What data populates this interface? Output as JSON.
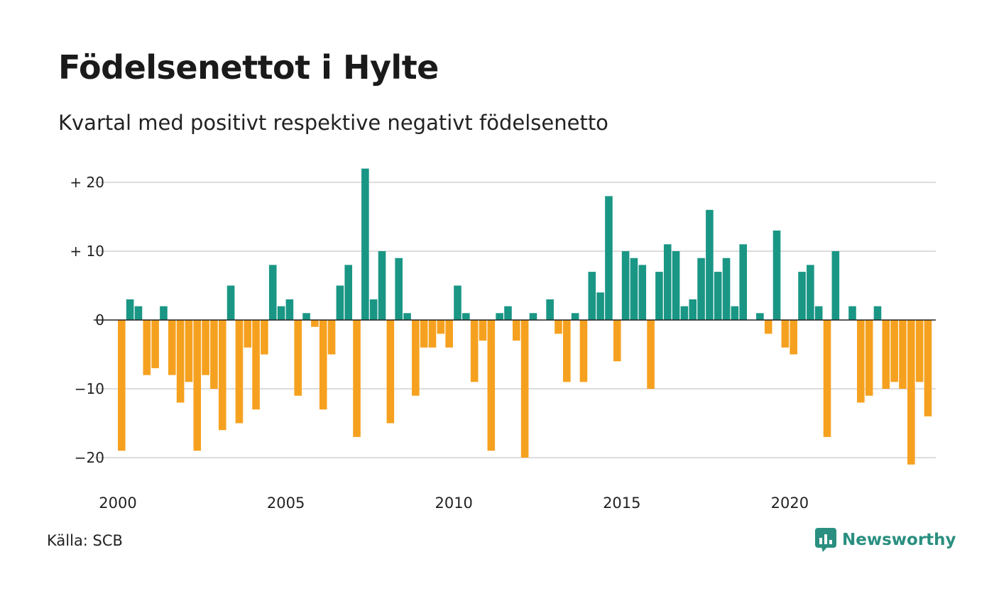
{
  "title": "Födelsenettot i Hylte",
  "subtitle": "Kvartal med positivt respektive negativt födelsenetto",
  "source": "Källa: SCB",
  "brand": "Newsworthy",
  "colors": {
    "positive": "#1a9685",
    "negative": "#f5a11f",
    "grid": "#dddddd",
    "zero": "#222222",
    "brand": "#2a8f80"
  },
  "chart_data": {
    "type": "bar",
    "x_start": "2000 Q1",
    "ylim": [
      -24,
      22
    ],
    "yticks": [
      {
        "value": 20,
        "label": "+ 20"
      },
      {
        "value": 10,
        "label": "+ 10"
      },
      {
        "value": 0,
        "label": "0"
      },
      {
        "value": -10,
        "label": "−10"
      },
      {
        "value": -20,
        "label": "−20"
      }
    ],
    "xticks": [
      {
        "year": 2000,
        "label": "2000"
      },
      {
        "year": 2005,
        "label": "2005"
      },
      {
        "year": 2010,
        "label": "2010"
      },
      {
        "year": 2015,
        "label": "2015"
      },
      {
        "year": 2020,
        "label": "2020"
      }
    ],
    "values": [
      -19,
      3,
      2,
      -8,
      -7,
      2,
      -8,
      -12,
      -9,
      -19,
      -8,
      -10,
      -16,
      5,
      -15,
      -4,
      -13,
      -5,
      8,
      2,
      3,
      -11,
      1,
      -1,
      -13,
      -5,
      5,
      8,
      -17,
      22,
      3,
      10,
      -15,
      9,
      1,
      -11,
      -4,
      -4,
      -2,
      -4,
      5,
      1,
      -9,
      -3,
      -19,
      1,
      2,
      -3,
      -20,
      1,
      0,
      3,
      -2,
      -9,
      1,
      -9,
      7,
      4,
      18,
      -6,
      10,
      9,
      8,
      -10,
      7,
      11,
      10,
      2,
      3,
      9,
      16,
      7,
      9,
      2,
      11,
      0,
      1,
      -2,
      13,
      -4,
      -5,
      7,
      8,
      2,
      -17,
      10,
      0,
      2,
      -12,
      -11,
      2,
      -10,
      -9,
      -10,
      -21,
      -9,
      -14
    ]
  }
}
